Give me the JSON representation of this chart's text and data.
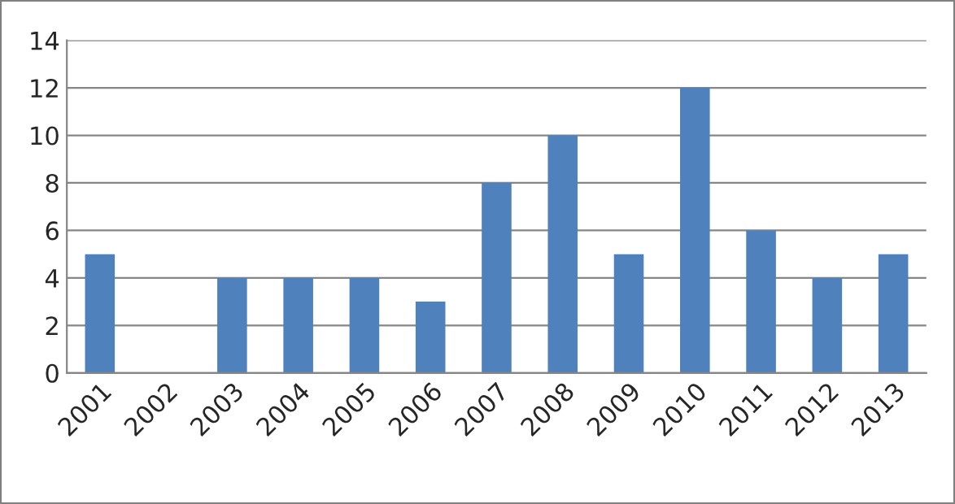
{
  "chart_data": {
    "type": "bar",
    "categories": [
      "2001",
      "2002",
      "2003",
      "2004",
      "2005",
      "2006",
      "2007",
      "2008",
      "2009",
      "2010",
      "2011",
      "2012",
      "2013"
    ],
    "values": [
      5,
      0,
      4,
      4,
      4,
      3,
      8,
      10,
      5,
      12,
      6,
      4,
      5
    ],
    "color": "#4f81bd",
    "ylim": [
      0,
      14
    ],
    "yticks": [
      0,
      2,
      4,
      6,
      8,
      10,
      12,
      14
    ],
    "grid": "y"
  }
}
